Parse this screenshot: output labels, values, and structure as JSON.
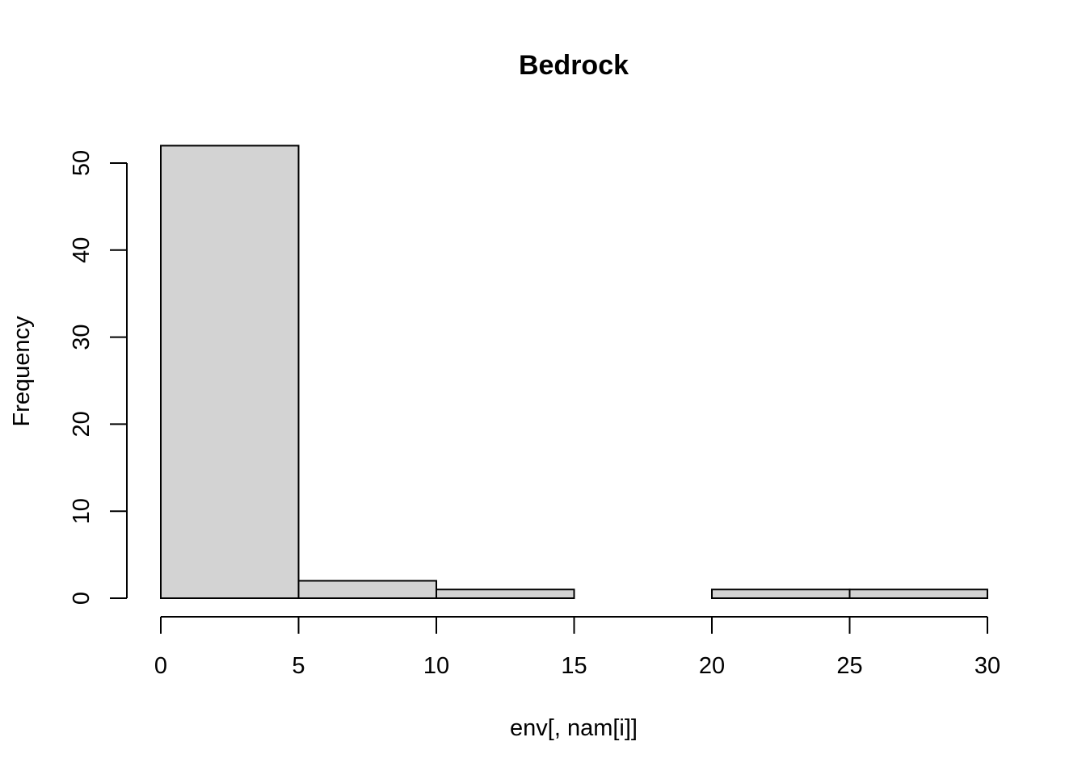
{
  "chart_data": {
    "type": "bar",
    "title": "Bedrock",
    "xlabel": "env[, nam[i]]",
    "ylabel": "Frequency",
    "bins": [
      {
        "from": 0,
        "to": 5,
        "value": 52
      },
      {
        "from": 5,
        "to": 10,
        "value": 2
      },
      {
        "from": 10,
        "to": 15,
        "value": 1
      },
      {
        "from": 15,
        "to": 20,
        "value": 0
      },
      {
        "from": 20,
        "to": 25,
        "value": 1
      },
      {
        "from": 25,
        "to": 30,
        "value": 1
      }
    ],
    "xlim": [
      0,
      30
    ],
    "ylim": [
      0,
      52
    ],
    "x_ticks": [
      0,
      5,
      10,
      15,
      20,
      25,
      30
    ],
    "y_ticks": [
      0,
      10,
      20,
      30,
      40,
      50
    ],
    "grid": false,
    "bar_color": "#d3d3d3"
  }
}
